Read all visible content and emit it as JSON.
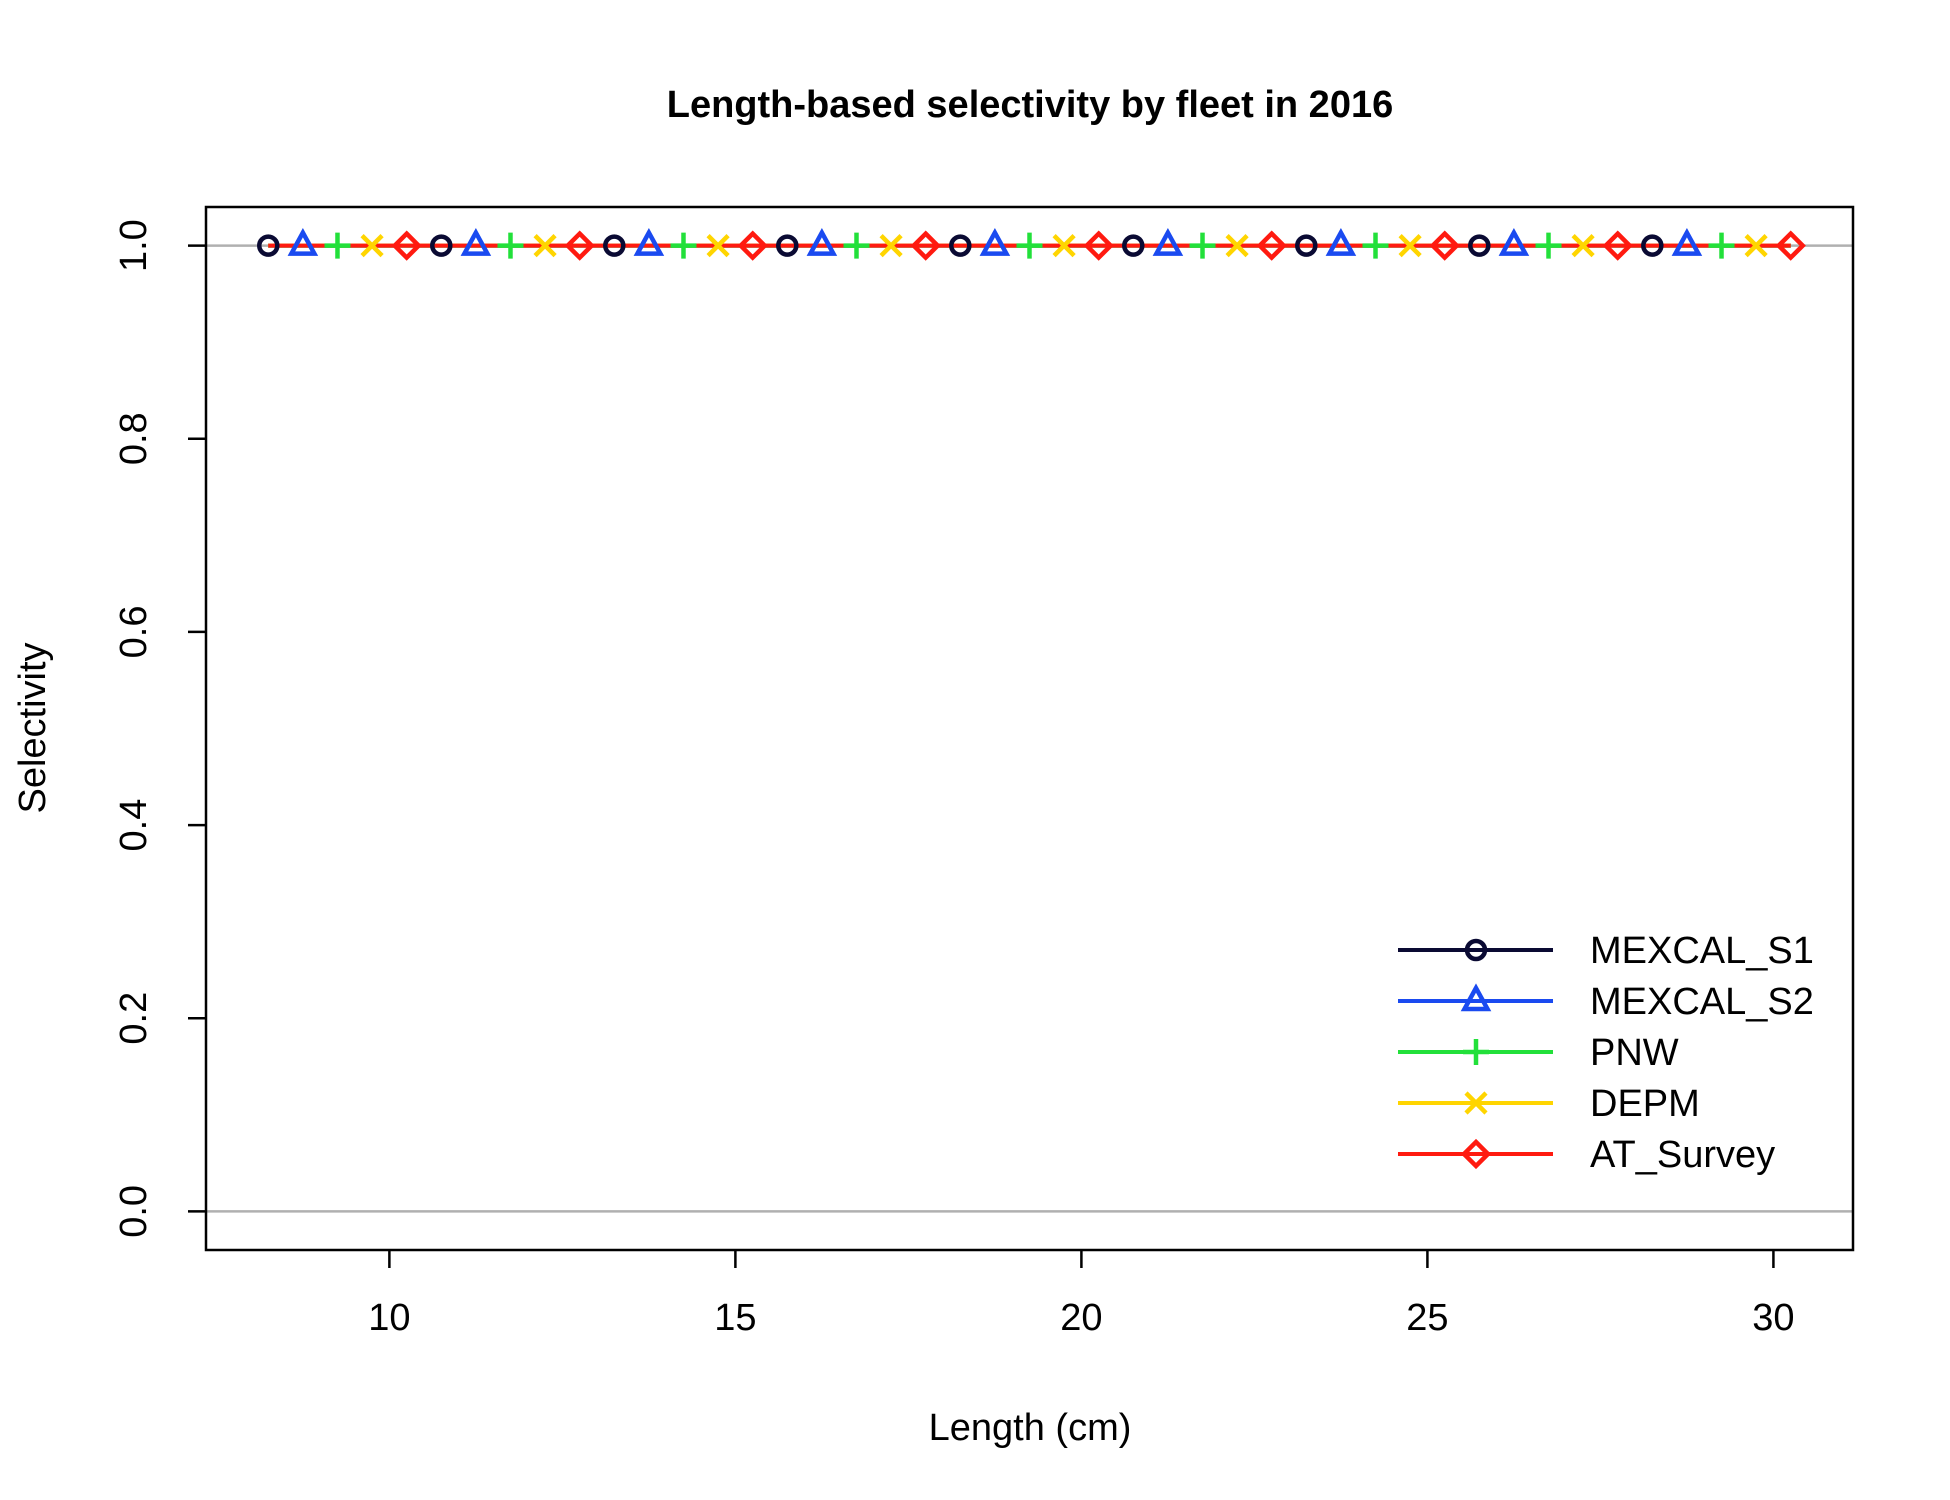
{
  "chart_data": {
    "type": "line",
    "title": "Length-based selectivity by fleet in 2016",
    "xlabel": "Length (cm)",
    "ylabel": "Selectivity",
    "xlim": [
      7.35,
      31.15
    ],
    "ylim": [
      -0.04,
      1.04
    ],
    "x_ticks": [
      "10",
      "15",
      "20",
      "25",
      "30"
    ],
    "y_ticks": [
      "0.0",
      "0.2",
      "0.4",
      "0.6",
      "0.8",
      "1.0"
    ],
    "hlines": [
      0,
      1
    ],
    "hline_color": "#B0B0B0",
    "grid": false,
    "legend_position": "bottom-right",
    "x": [
      8.25,
      8.75,
      9.25,
      9.75,
      10.25,
      10.75,
      11.25,
      11.75,
      12.25,
      12.75,
      13.25,
      13.75,
      14.25,
      14.75,
      15.25,
      15.75,
      16.25,
      16.75,
      17.25,
      17.75,
      18.25,
      18.75,
      19.25,
      19.75,
      20.25,
      20.75,
      21.25,
      21.75,
      22.25,
      22.75,
      23.25,
      23.75,
      24.25,
      24.75,
      25.25,
      25.75,
      26.25,
      26.75,
      27.25,
      27.75,
      28.25,
      28.75,
      29.25,
      29.75,
      30.25
    ],
    "series": [
      {
        "name": "MEXCAL_S1",
        "color": "#0A0A33",
        "marker": "circle",
        "value": 1.0,
        "marker_offset": 0
      },
      {
        "name": "MEXCAL_S2",
        "color": "#1A4AF0",
        "marker": "triangle",
        "value": 1.0,
        "marker_offset": 1
      },
      {
        "name": "PNW",
        "color": "#22E03A",
        "marker": "plus",
        "value": 1.0,
        "marker_offset": 2
      },
      {
        "name": "DEPM",
        "color": "#FFD500",
        "marker": "cross",
        "value": 1.0,
        "marker_offset": 3
      },
      {
        "name": "AT_Survey",
        "color": "#FF1A10",
        "marker": "diamond",
        "value": 1.0,
        "marker_offset": 4
      }
    ]
  }
}
